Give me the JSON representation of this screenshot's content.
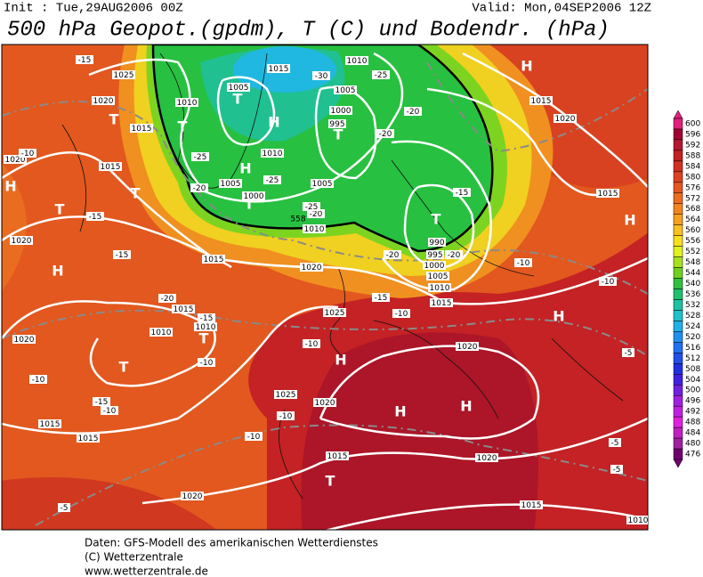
{
  "header": {
    "init": "Init : Tue,29AUG2006 00Z",
    "valid": "Valid: Mon,04SEP2006 12Z",
    "title": "500 hPa Geopot.(gpdm), T (C) und Bodendr. (hPa)"
  },
  "map": {
    "centers": [
      "T",
      "H",
      "T",
      "T",
      "H",
      "T",
      "T",
      "T",
      "H",
      "H",
      "T",
      "T",
      "H",
      "H",
      "H",
      "H",
      "H",
      "H",
      "T",
      "T",
      "T"
    ],
    "isobar_labels": [
      "1025",
      "1020",
      "1015",
      "1020",
      "1015",
      "1020",
      "1015",
      "1020",
      "1005",
      "1010",
      "1015",
      "1010",
      "1005",
      "1000",
      "995",
      "1010",
      "1005",
      "1000",
      "1005",
      "1010",
      "1015",
      "1020",
      "1015",
      "990",
      "995",
      "1000",
      "1005",
      "1010",
      "1015",
      "1015",
      "1010",
      "1010",
      "1025",
      "1020",
      "1020",
      "1025",
      "1020",
      "1015",
      "1015",
      "1015",
      "1020",
      "1020",
      "1015",
      "1010"
    ],
    "temperature_labels": [
      "-15",
      "-10",
      "-25",
      "-20",
      "-25",
      "-30",
      "-25",
      "-20",
      "-20",
      "-20",
      "-15",
      "-20",
      "-20",
      "-10",
      "-10",
      "-15",
      "-10",
      "-20",
      "-15",
      "-10",
      "-10",
      "-10",
      "-15",
      "-10",
      "-10",
      "-10",
      "-5",
      "-5",
      "-5",
      "-5",
      "-15",
      "-15",
      "-25"
    ],
    "height_labels": [
      "558"
    ]
  },
  "colorbar": {
    "levels": [
      600,
      596,
      592,
      588,
      584,
      580,
      576,
      572,
      568,
      564,
      560,
      556,
      552,
      548,
      544,
      540,
      536,
      532,
      528,
      524,
      520,
      516,
      512,
      508,
      504,
      500,
      496,
      492,
      488,
      484,
      480,
      476
    ],
    "colors": [
      "#e0207a",
      "#a00030",
      "#b41830",
      "#c42020",
      "#d23020",
      "#dc4220",
      "#e45620",
      "#ec6c20",
      "#f28420",
      "#f6a020",
      "#f8c020",
      "#f8e020",
      "#e0f020",
      "#a8e020",
      "#70d020",
      "#30c040",
      "#20c070",
      "#20c0a0",
      "#20c0c8",
      "#20b0e8",
      "#2090f0",
      "#2070f0",
      "#2050e8",
      "#2030e0",
      "#4020e0",
      "#7020e0",
      "#a020e0",
      "#c020e0",
      "#e020e0",
      "#c020c0",
      "#a020a0",
      "#700070"
    ]
  },
  "footer": [
    "Daten: GFS-Modell des amerikanischen Wetterdienstes",
    "(C) Wetterzentrale",
    "www.wetterzentrale.de"
  ]
}
